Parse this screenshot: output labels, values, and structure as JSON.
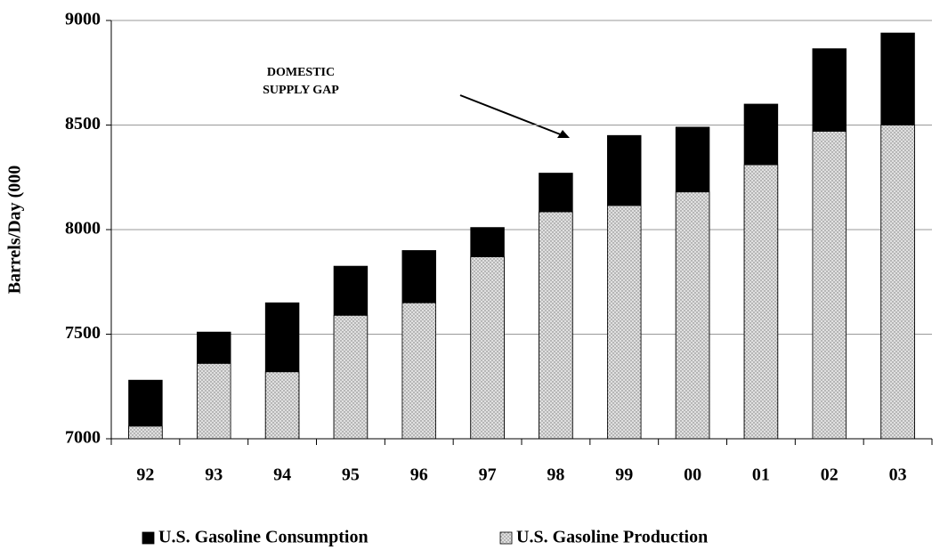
{
  "chart_data": {
    "type": "bar",
    "overlap": true,
    "y_label": "Barrels/Day (000",
    "annotation_lines": [
      "DOMESTIC",
      "SUPPLY GAP"
    ],
    "categories": [
      "92",
      "93",
      "94",
      "95",
      "96",
      "97",
      "98",
      "99",
      "00",
      "01",
      "02",
      "03"
    ],
    "series": [
      {
        "name": "U.S. Gasoline Consumption",
        "color": "#000000",
        "pattern": "solid",
        "values": [
          7280,
          7510,
          7650,
          7825,
          7900,
          8010,
          8270,
          8450,
          8490,
          8600,
          8865,
          8940
        ]
      },
      {
        "name": "U.S. Gasoline Production",
        "color": "#e0e0e0",
        "pattern": "dots",
        "values": [
          7060,
          7360,
          7320,
          7590,
          7650,
          7870,
          8085,
          8115,
          8180,
          8310,
          8470,
          8500
        ]
      }
    ],
    "ylim": [
      7000,
      9000
    ],
    "yticks": [
      7000,
      7500,
      8000,
      8500,
      9000
    ],
    "grid": true,
    "legend": "bottom"
  }
}
